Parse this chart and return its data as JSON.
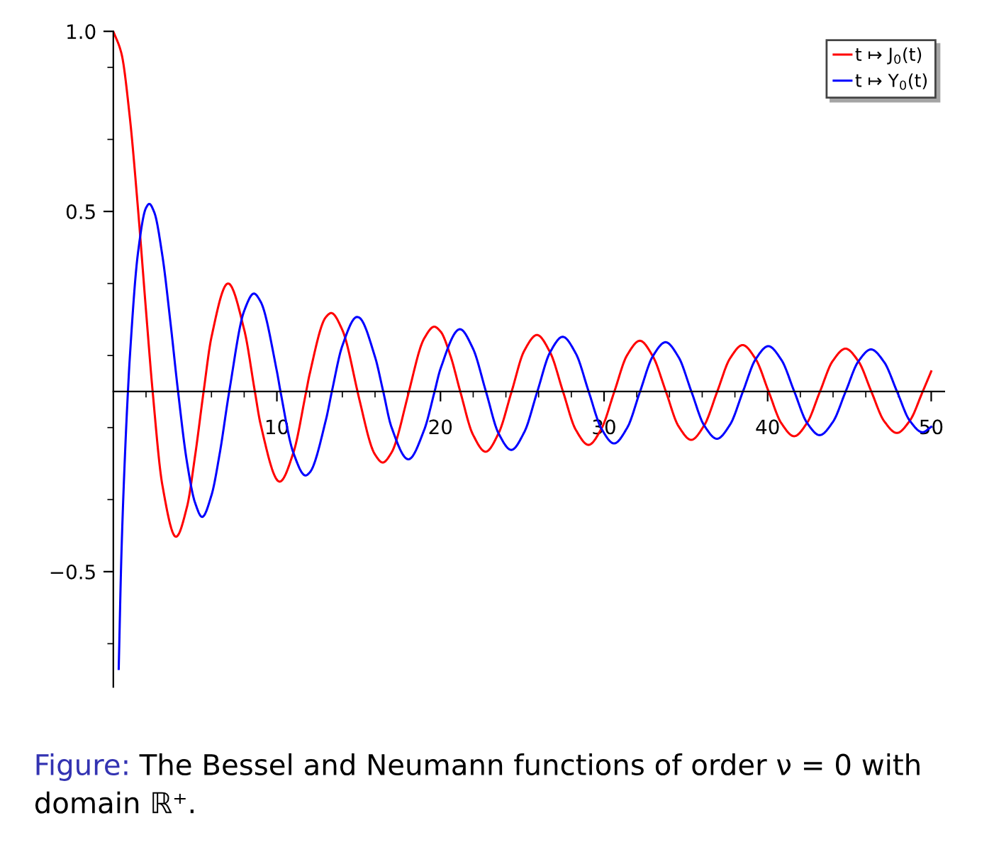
{
  "chart_data": {
    "type": "line",
    "annotations": [
      "Figure:",
      "The Bessel and Neumann functions of order ν = 0 with domain ℝ⁺."
    ],
    "xlim": [
      0,
      50.8
    ],
    "ylim": [
      -0.82,
      1.0
    ],
    "xticks": [
      10,
      20,
      30,
      40,
      50
    ],
    "yticks": [
      {
        "value": -0.5,
        "label": "−0.5"
      },
      {
        "value": 0.5,
        "label": "0.5"
      },
      {
        "value": 1.0,
        "label": "1.0"
      }
    ],
    "legend": "top right",
    "grid": false,
    "marker": "none",
    "line_style": "solid",
    "series": [
      {
        "name": "t ↦ J$_{0}$(t)",
        "color": "#ff0000",
        "x": [
          0,
          0.5,
          1,
          1.5,
          2,
          2.405,
          3,
          3.832,
          4.5,
          5,
          5.52,
          6,
          7.016,
          8,
          8.654,
          9,
          10.17,
          11,
          11.79,
          12,
          13,
          13.32,
          14,
          14.93,
          15,
          16,
          16.47,
          17,
          18,
          18.07,
          19,
          19.62,
          20,
          20.6,
          21.21,
          21.99,
          22.76,
          23.55,
          24.35,
          25.12,
          25.9,
          26.7,
          27.49,
          28.27,
          29.05,
          29.84,
          30.63,
          31.41,
          32.19,
          32.98,
          33.78,
          34.55,
          35.33,
          36.12,
          36.92,
          37.7,
          38.47,
          39.27,
          40.06,
          40.84,
          41.62,
          42.41,
          43.2,
          43.98,
          44.76,
          45.55,
          46.34,
          47.12,
          47.9,
          48.69,
          49.48,
          50
        ],
        "values": [
          1.0,
          0.938,
          0.765,
          0.512,
          0.224,
          0,
          -0.26,
          -0.403,
          -0.321,
          -0.178,
          0,
          0.151,
          0.3,
          0.172,
          0,
          -0.09,
          -0.25,
          -0.171,
          0,
          0.048,
          0.207,
          0.218,
          0.171,
          0,
          -0.014,
          -0.175,
          -0.197,
          -0.17,
          -0.013,
          0,
          0.147,
          0.18,
          0.167,
          0.101,
          0,
          -0.12,
          -0.167,
          -0.116,
          0,
          0.113,
          0.157,
          0.109,
          0,
          -0.106,
          -0.148,
          -0.103,
          0,
          0.101,
          0.141,
          0.098,
          0,
          -0.096,
          -0.134,
          -0.094,
          0,
          0.092,
          0.129,
          0.09,
          0,
          -0.088,
          -0.124,
          -0.087,
          0,
          0.085,
          0.119,
          0.084,
          0,
          -0.082,
          -0.115,
          -0.081,
          0,
          0.056
        ]
      },
      {
        "name": "t ↦ Y$_{0}$(t)",
        "color": "#0000ff",
        "x": [
          0.33,
          0.5,
          0.75,
          0.894,
          1,
          1.5,
          2,
          2.197,
          2.5,
          3,
          3.5,
          3.958,
          4.5,
          5,
          5.43,
          6,
          6.5,
          7.086,
          8,
          8.596,
          9,
          10,
          10.22,
          11,
          11.75,
          12,
          13,
          13.36,
          14,
          14.9,
          15,
          16,
          16.5,
          17,
          18.04,
          19,
          19.64,
          20,
          21.19,
          21.98,
          22.78,
          23.55,
          24.33,
          25.12,
          25.92,
          26.7,
          27.47,
          28.27,
          29.06,
          29.84,
          30.61,
          31.41,
          32.2,
          32.98,
          33.76,
          34.55,
          35.34,
          36.12,
          36.9,
          37.7,
          38.49,
          39.27,
          40.04,
          40.84,
          41.63,
          42.41,
          43.18,
          43.98,
          44.77,
          45.55,
          46.32,
          47.12,
          47.91,
          48.69,
          49.47,
          50
        ],
        "values": [
          -0.77,
          -0.445,
          -0.137,
          0,
          0.088,
          0.382,
          0.51,
          0.521,
          0.498,
          0.377,
          0.189,
          0,
          -0.195,
          -0.309,
          -0.348,
          -0.288,
          -0.173,
          0,
          0.224,
          0.272,
          0.25,
          0.056,
          0,
          -0.169,
          -0.233,
          -0.225,
          -0.078,
          0,
          0.127,
          0.207,
          0.206,
          0.096,
          0,
          -0.098,
          -0.188,
          -0.107,
          0,
          0.063,
          0.173,
          0.12,
          0,
          -0.116,
          -0.162,
          -0.113,
          0,
          0.109,
          0.152,
          0.106,
          0,
          -0.103,
          -0.144,
          -0.101,
          0,
          0.098,
          0.137,
          0.096,
          0,
          -0.094,
          -0.131,
          -0.092,
          0,
          0.09,
          0.126,
          0.088,
          0,
          -0.087,
          -0.121,
          -0.085,
          0,
          0.084,
          0.117,
          0.082,
          0,
          -0.081,
          -0.113,
          -0.098
        ]
      }
    ]
  }
}
